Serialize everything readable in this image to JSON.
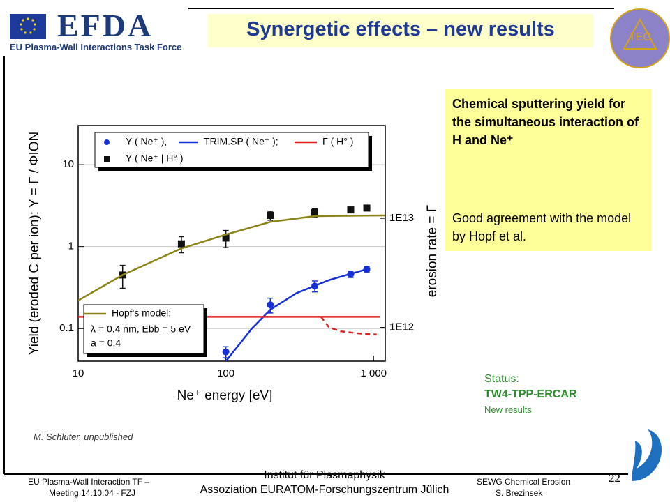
{
  "header": {
    "logo": "EFDA",
    "subtitle": "EU Plasma-Wall Interactions Task Force",
    "badge": "TEC"
  },
  "title": "Synergetic effects – new results",
  "textbox": {
    "heading": "Chemical sputtering yield for the simultaneous interaction of  H and Ne⁺",
    "body": "Good agreement with the model by Hopf et al."
  },
  "status": {
    "label": "Status:",
    "task": "TW4-TPP-ERCAR",
    "note": "New results"
  },
  "credit": "M. Schlüter, unpublished",
  "footer": {
    "left1": "EU Plasma-Wall Interaction TF –",
    "left2": "Meeting 14.10.04 - FZJ",
    "center1": "Institut für Plasmaphysik",
    "center2": "Assoziation EURATOM-Forschungszentrum Jülich",
    "right1": "SEWG Chemical Erosion",
    "right2": "S. Brezinsek",
    "page": "22"
  },
  "chart_data": {
    "type": "line",
    "xlabel": "Ne⁺ energy [eV]",
    "ylabel": "Yield (eroded C per ion):  Y = Γ / ΦION",
    "y2label": "erosion rate = Γ",
    "xscale": "log",
    "yscale": "log",
    "y2scale": "log",
    "xlim": [
      10,
      1200
    ],
    "ylim": [
      0.04,
      30
    ],
    "y2lim": [
      490000000000,
      71000000000000
    ],
    "xticks": [
      10,
      100,
      {
        "value": 1000,
        "label": "1 000"
      }
    ],
    "yticks": [
      0.1,
      1,
      10
    ],
    "y2ticks": [
      {
        "value": 1000000000000,
        "label": "1E12"
      },
      {
        "value": 10000000000000,
        "label": "1E13"
      }
    ],
    "grid": true,
    "series": [
      {
        "name": "Y ( Ne⁺ ),",
        "color": "#1530d8",
        "marker": "circle",
        "x": [
          100,
          200,
          400,
          700,
          900
        ],
        "values": [
          0.052,
          0.195,
          0.33,
          0.46,
          0.53
        ],
        "errors": [
          0.008,
          0.04,
          0.05,
          0.04,
          0.04
        ]
      },
      {
        "name": "TRIM.SP ( Ne⁺ );",
        "color": "#1530d8",
        "marker": "none",
        "x": [
          100,
          150,
          200,
          300,
          500,
          900
        ],
        "values": [
          0.04,
          0.1,
          0.17,
          0.27,
          0.39,
          0.53
        ]
      },
      {
        "name": "Γ ( H° )",
        "color": "#e02020",
        "marker": "none",
        "axis": "y2",
        "x": [
          10,
          1100
        ],
        "values": [
          1250000000000,
          1250000000000
        ]
      },
      {
        "name": "Y ( Ne⁺ | H° )",
        "color": "#111111",
        "marker": "square",
        "x": [
          20,
          50,
          100,
          200,
          400,
          700,
          900
        ],
        "values": [
          0.45,
          1.08,
          1.27,
          2.4,
          2.6,
          2.8,
          2.95
        ],
        "errors": [
          0.14,
          0.24,
          0.3,
          0.3,
          0.3,
          0.15,
          0.15
        ]
      },
      {
        "name": "Hopf's model:",
        "color": "#8c8418",
        "marker": "none",
        "x": [
          10,
          20,
          50,
          100,
          200,
          400,
          1200
        ],
        "values": [
          0.22,
          0.45,
          0.95,
          1.4,
          2.0,
          2.35,
          2.4
        ]
      }
    ],
    "extra_lines": [
      {
        "color": "#e02020",
        "style": "dashed",
        "axis": "y2",
        "x": [
          440,
          500,
          600,
          800,
          1050
        ],
        "values": [
          1250000000000,
          1000000000000,
          920000000000,
          880000000000,
          860000000000
        ]
      }
    ],
    "model_params": [
      "λ = 0.4 nm, Ebb = 5 eV",
      "a = 0.4"
    ]
  }
}
